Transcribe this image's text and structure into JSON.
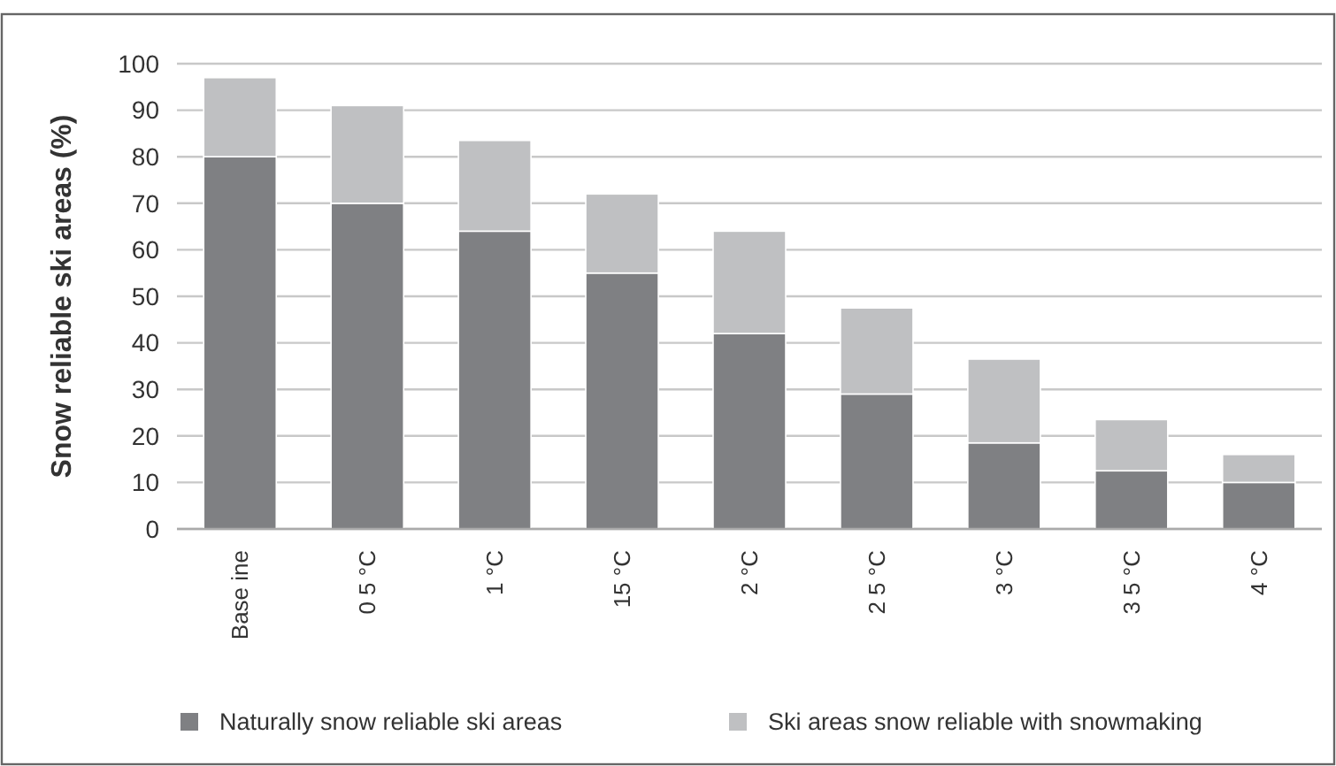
{
  "chart_data": {
    "type": "bar",
    "ylabel": "Snow reliable ski areas (%)",
    "categories": [
      "Base ine",
      "0 5 °C",
      "1 °C",
      "15 °C",
      "2 °C",
      "2 5 °C",
      "3 °C",
      "3 5 °C",
      "4 °C"
    ],
    "series": [
      {
        "name": "Naturally snow reliable ski areas",
        "color": "#7f8083",
        "values": [
          80,
          70,
          64,
          55,
          42,
          29,
          18.5,
          12.5,
          10
        ]
      },
      {
        "name": "Ski areas snow reliable with snowmaking",
        "color": "#bfc0c2",
        "values": [
          17,
          21,
          19.5,
          17,
          22,
          18.5,
          18,
          11,
          6
        ]
      }
    ],
    "stacked": true,
    "ylim": [
      0,
      100
    ],
    "yticks": [
      0,
      10,
      20,
      30,
      40,
      50,
      60,
      70,
      80,
      90,
      100
    ],
    "grid": "y",
    "legend": "bottom"
  }
}
